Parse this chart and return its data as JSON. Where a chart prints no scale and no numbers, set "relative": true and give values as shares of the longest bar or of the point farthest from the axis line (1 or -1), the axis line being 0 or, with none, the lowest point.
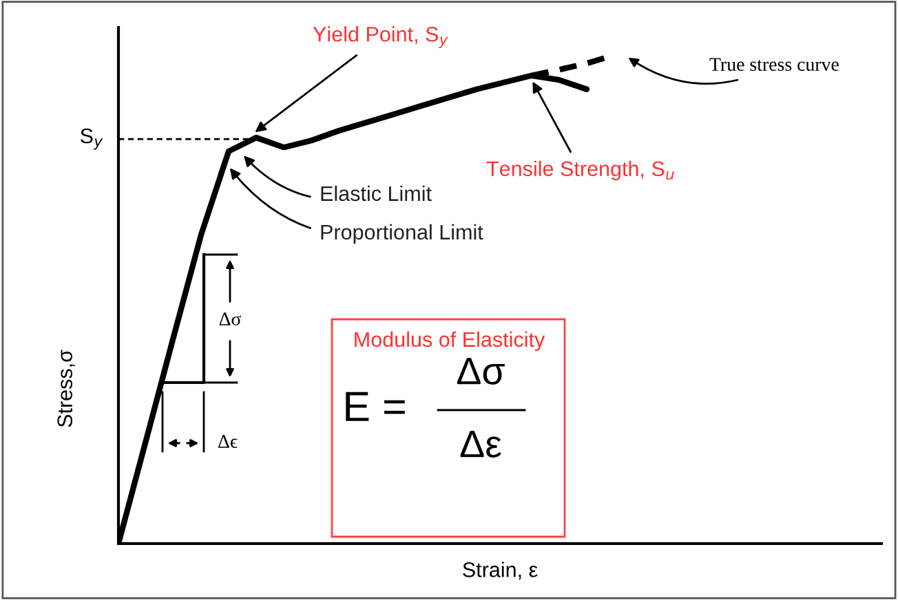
{
  "chart_data": {
    "type": "line",
    "relative": true,
    "xlabel": "Strain, ε",
    "ylabel": "Stress,σ",
    "grid": false,
    "legend": false,
    "marker": "none",
    "categories": [
      null,
      null,
      null,
      null,
      null,
      null,
      null,
      null,
      null,
      null,
      null,
      null,
      null,
      null,
      null,
      null,
      null,
      null,
      null,
      null,
      null,
      null,
      null,
      null,
      null,
      null,
      null,
      null
    ],
    "series": [
      {
        "color": "#000000",
        "line_style": "solid",
        "values": [
          0,
          0.211,
          0.423,
          0.632,
          0.803,
          0.831,
          0.811,
          0.825,
          0.845,
          0.862,
          0.879,
          0.896,
          0.913,
          0.93,
          0.944,
          0.958,
          0.949,
          0.93,
          null,
          null,
          null,
          null,
          null,
          null,
          null,
          null,
          null,
          null
        ]
      },
      {
        "color": "#000000",
        "line_style": "dashed",
        "values": [
          null,
          null,
          null,
          null,
          null,
          null,
          null,
          null,
          null,
          null,
          null,
          null,
          null,
          null,
          null,
          0.958,
          0.97,
          0.983,
          1.0,
          null,
          null,
          null,
          null,
          null,
          null,
          null,
          null,
          null
        ]
      }
    ],
    "ref_lines": [
      {
        "axis": "y",
        "value": 0.828,
        "label": "S$_{y}$",
        "line_style": "dashed",
        "color": "#000000"
      }
    ],
    "annotations": [
      "Yield Point, S$_{y}$",
      "Elastic Limit",
      "Proportional Limit",
      "Tensile Strength, S$_{u}$",
      "True stress curve",
      "Δσ",
      "Δϵ",
      "Modulus of Elasticity",
      "E =",
      "Δσ",
      "Δε"
    ]
  }
}
